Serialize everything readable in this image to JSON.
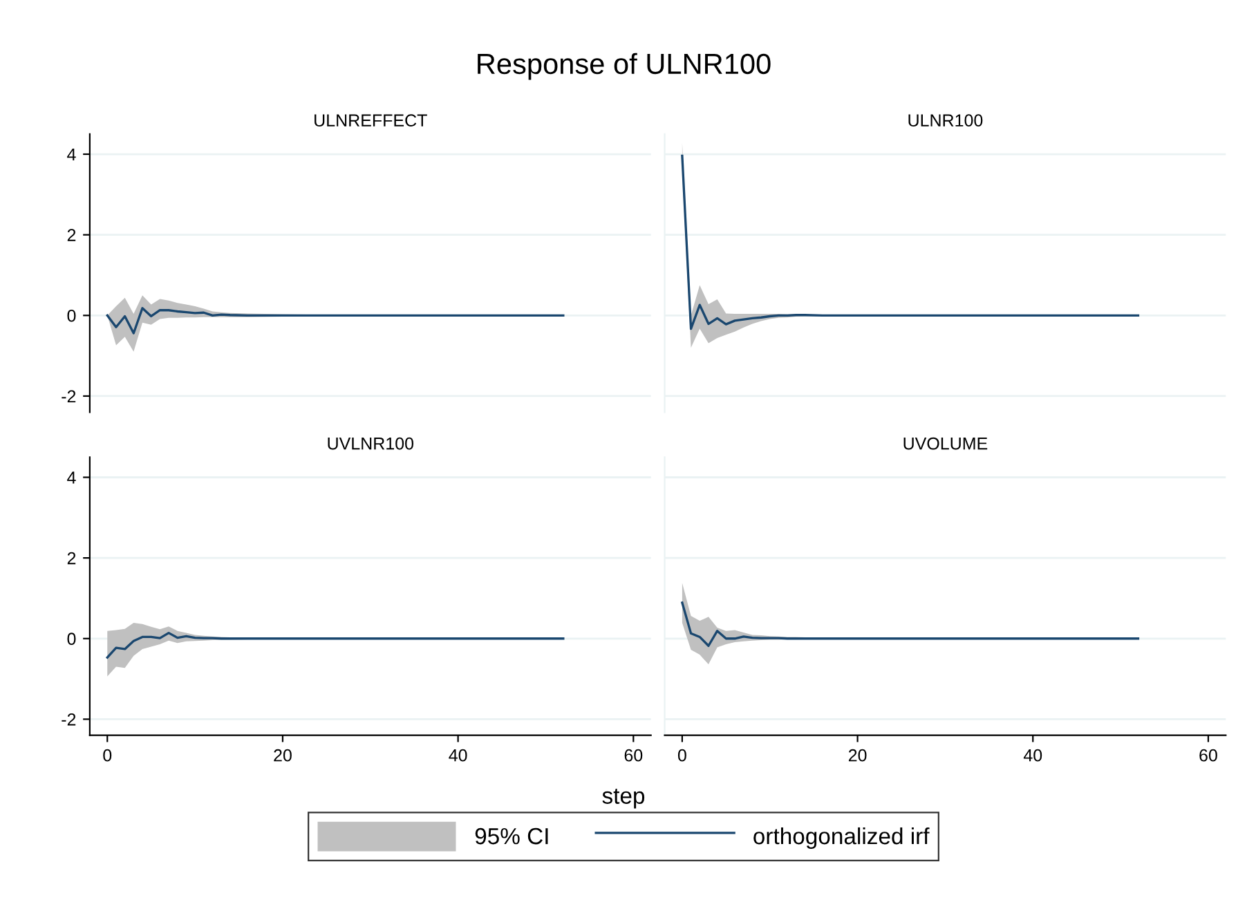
{
  "chart_data": [
    {
      "type": "line",
      "title": "ULNREFFECT",
      "annotations": [
        "Response of ULNR100"
      ],
      "x": [
        0,
        1,
        2,
        3,
        4,
        5,
        6,
        7,
        8,
        9,
        10,
        11,
        12,
        13,
        14,
        16,
        20,
        24,
        30,
        40,
        52
      ],
      "xlim": [
        -2,
        62
      ],
      "ylim": [
        -2.4,
        4.5
      ],
      "xticks": [
        0,
        20,
        40,
        60
      ],
      "yticks": [
        -2,
        0,
        2,
        4
      ],
      "grid": "y",
      "tick_labels": "y",
      "series": [
        {
          "color": "#1a476f",
          "values": [
            0,
            -0.29,
            -0.02,
            -0.44,
            0.18,
            -0.02,
            0.13,
            0.13,
            0.1,
            0.08,
            0.06,
            0.07,
            0,
            0.02,
            0.01,
            0,
            0,
            0,
            0,
            0,
            0
          ],
          "lower": [
            0,
            -0.74,
            -0.53,
            -0.9,
            -0.18,
            -0.23,
            -0.09,
            -0.06,
            -0.06,
            -0.05,
            -0.05,
            -0.04,
            -0.04,
            -0.04,
            -0.04,
            -0.04,
            -0.03,
            -0.02,
            -0.02,
            -0.01,
            0
          ],
          "upper": [
            0,
            0.23,
            0.44,
            0.04,
            0.5,
            0.27,
            0.41,
            0.37,
            0.31,
            0.27,
            0.23,
            0.17,
            0.1,
            0.08,
            0.06,
            0.05,
            0.03,
            0.02,
            0.02,
            0.01,
            0
          ]
        }
      ]
    },
    {
      "type": "line",
      "title": "ULNR100",
      "x": [
        0,
        1,
        2,
        3,
        4,
        5,
        6,
        7,
        8,
        9,
        10,
        11,
        12,
        13,
        14,
        16,
        20,
        24,
        30,
        40,
        52
      ],
      "xlim": [
        -2,
        62
      ],
      "ylim": [
        -2.4,
        4.5
      ],
      "xticks": [
        0,
        20,
        40,
        60
      ],
      "yticks": [
        -2,
        0,
        2,
        4
      ],
      "grid": "y",
      "tick_labels": false,
      "series": [
        {
          "color": "#1a476f",
          "values": [
            3.96,
            -0.33,
            0.26,
            -0.21,
            -0.07,
            -0.22,
            -0.13,
            -0.1,
            -0.07,
            -0.05,
            -0.02,
            0,
            0,
            0.01,
            0.01,
            0,
            0,
            0,
            0,
            0,
            0
          ],
          "lower": [
            3.6,
            -0.8,
            -0.33,
            -0.69,
            -0.56,
            -0.48,
            -0.4,
            -0.3,
            -0.21,
            -0.14,
            -0.09,
            -0.06,
            -0.05,
            -0.03,
            -0.02,
            -0.01,
            0,
            0,
            0,
            0,
            0
          ],
          "upper": [
            4.28,
            0,
            0.75,
            0.28,
            0.4,
            0.05,
            0.04,
            0.04,
            0.04,
            0.04,
            0.04,
            0.04,
            0.03,
            0.03,
            0.02,
            0.01,
            0,
            0,
            0,
            0,
            0
          ]
        }
      ]
    },
    {
      "type": "line",
      "title": "UVLNR100",
      "xlabel": "step",
      "x": [
        0,
        1,
        2,
        3,
        4,
        5,
        6,
        7,
        8,
        9,
        10,
        11,
        12,
        13,
        14,
        16,
        20,
        24,
        30,
        40,
        52
      ],
      "xlim": [
        -2,
        62
      ],
      "ylim": [
        -2.4,
        4.5
      ],
      "xticks": [
        0,
        20,
        40,
        60
      ],
      "yticks": [
        -2,
        0,
        2,
        4
      ],
      "grid": "y",
      "series": [
        {
          "color": "#1a476f",
          "values": [
            -0.47,
            -0.23,
            -0.26,
            -0.06,
            0.04,
            0.04,
            0.01,
            0.14,
            0.02,
            0.06,
            0.02,
            0.01,
            0.01,
            0,
            0,
            0,
            0,
            0,
            0,
            0,
            0
          ],
          "lower": [
            -0.94,
            -0.7,
            -0.73,
            -0.43,
            -0.26,
            -0.2,
            -0.14,
            -0.05,
            -0.11,
            -0.07,
            -0.06,
            -0.05,
            -0.04,
            -0.03,
            -0.03,
            -0.02,
            -0.01,
            -0.01,
            0,
            0,
            0
          ],
          "upper": [
            0.19,
            0.21,
            0.24,
            0.39,
            0.36,
            0.29,
            0.23,
            0.3,
            0.19,
            0.14,
            0.09,
            0.07,
            0.05,
            0.04,
            0.03,
            0.02,
            0.01,
            0.01,
            0,
            0,
            0
          ]
        }
      ]
    },
    {
      "type": "line",
      "title": "UVOLUME",
      "annotations": [
        "95% CI"
      ],
      "x": [
        0,
        1,
        2,
        3,
        4,
        5,
        6,
        7,
        8,
        9,
        10,
        11,
        12,
        13,
        14,
        16,
        20,
        24,
        30,
        40,
        52
      ],
      "xlim": [
        -2,
        62
      ],
      "ylim": [
        -2.4,
        4.5
      ],
      "xticks": [
        0,
        20,
        40,
        60
      ],
      "yticks": [
        -2,
        0,
        2,
        4
      ],
      "grid": "y",
      "tick_labels": "x",
      "legend": "bottom",
      "series": [
        {
          "name": "orthogonalized irf",
          "color": "#1a476f",
          "values": [
            0.89,
            0.13,
            0.04,
            -0.18,
            0.19,
            0,
            0,
            0.05,
            0.02,
            0.01,
            0.01,
            0.01,
            0,
            0,
            0,
            0,
            0,
            0,
            0,
            0,
            0
          ],
          "lower": [
            0.39,
            -0.28,
            -0.4,
            -0.64,
            -0.22,
            -0.14,
            -0.09,
            -0.07,
            -0.05,
            -0.04,
            -0.03,
            -0.03,
            -0.02,
            -0.02,
            -0.02,
            -0.01,
            -0.01,
            0,
            0,
            0,
            0
          ],
          "upper": [
            1.38,
            0.56,
            0.44,
            0.54,
            0.27,
            0.19,
            0.21,
            0.15,
            0.09,
            0.08,
            0.06,
            0.05,
            0.04,
            0.04,
            0.03,
            0.02,
            0.01,
            0.01,
            0,
            0,
            0
          ]
        }
      ]
    }
  ]
}
